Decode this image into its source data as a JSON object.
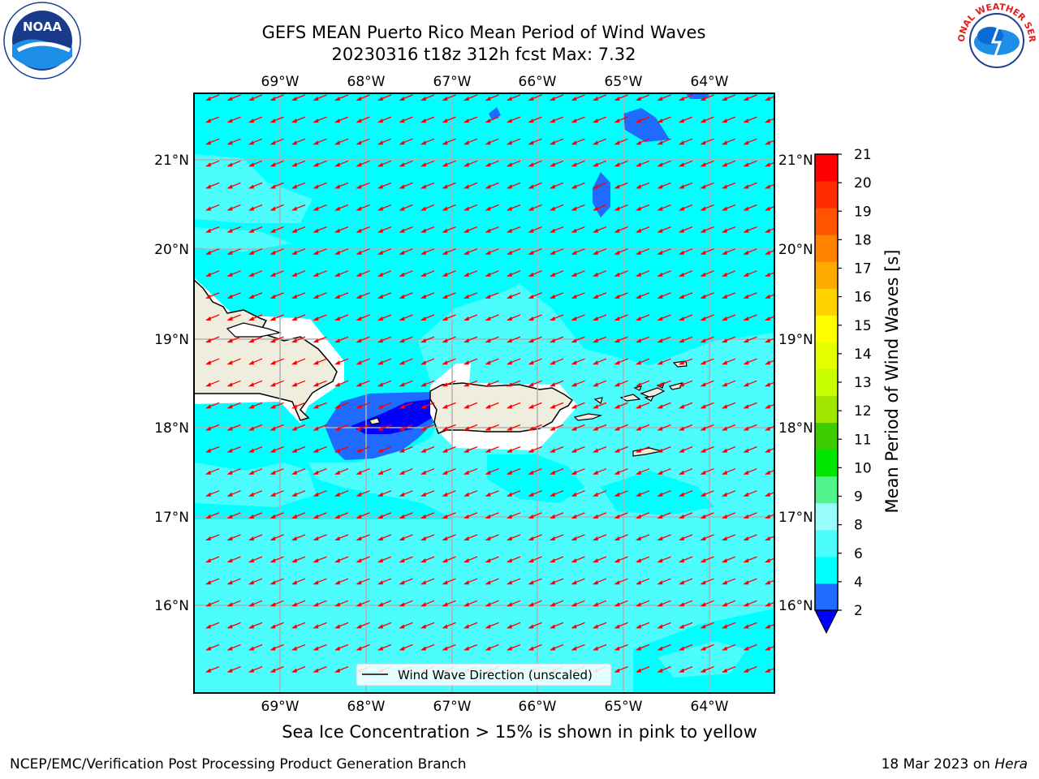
{
  "header": {
    "title_line1": "GEFS MEAN Puerto Rico Mean Period of Wind Waves",
    "title_line2": "20230316 t18z 312h fcst   Max: 7.32"
  },
  "logos": {
    "noara_text": "NOAA",
    "noaa_ring": "NATIONAL OCEANIC AND ATMOSPHERIC ADMINISTRATION · U.S. DEPARTMENT OF COMMERCE",
    "nws_ring": "NATIONAL WEATHER SERVICE"
  },
  "map": {
    "lon_ticks": [
      "69°W",
      "68°W",
      "67°W",
      "66°W",
      "65°W",
      "64°W"
    ],
    "lat_ticks": [
      "21°N",
      "20°N",
      "19°N",
      "18°N",
      "17°N",
      "16°N"
    ],
    "legend_label": "Wind Wave Direction (unscaled)",
    "arrow_color": "#ff0000",
    "base_color": "#00ffff",
    "light_color": "#4dfcfc"
  },
  "colorbar": {
    "label": "Mean Period of Wind Waves [s]",
    "ticks": [
      "2",
      "4",
      "6",
      "8",
      "9",
      "10",
      "11",
      "12",
      "13",
      "14",
      "15",
      "16",
      "17",
      "18",
      "19",
      "20",
      "21"
    ],
    "colors": [
      "#1f6bff",
      "#00ffff",
      "#4dfcfc",
      "#99fcfc",
      "#4ff58c",
      "#00e600",
      "#3ccc00",
      "#a0e600",
      "#c8ff00",
      "#e6ff00",
      "#ffff00",
      "#ffd200",
      "#ffaa00",
      "#ff8200",
      "#ff5500",
      "#ff2a00",
      "#ff0000"
    ],
    "under_color": "#0000ff"
  },
  "footer": {
    "subtitle": "Sea Ice Concentration > 15% is shown in pink to yellow",
    "left": "NCEP/EMC/Verification Post Processing Product Generation Branch",
    "right_prefix": "18 Mar 2023 on ",
    "right_italic": "Hera"
  }
}
